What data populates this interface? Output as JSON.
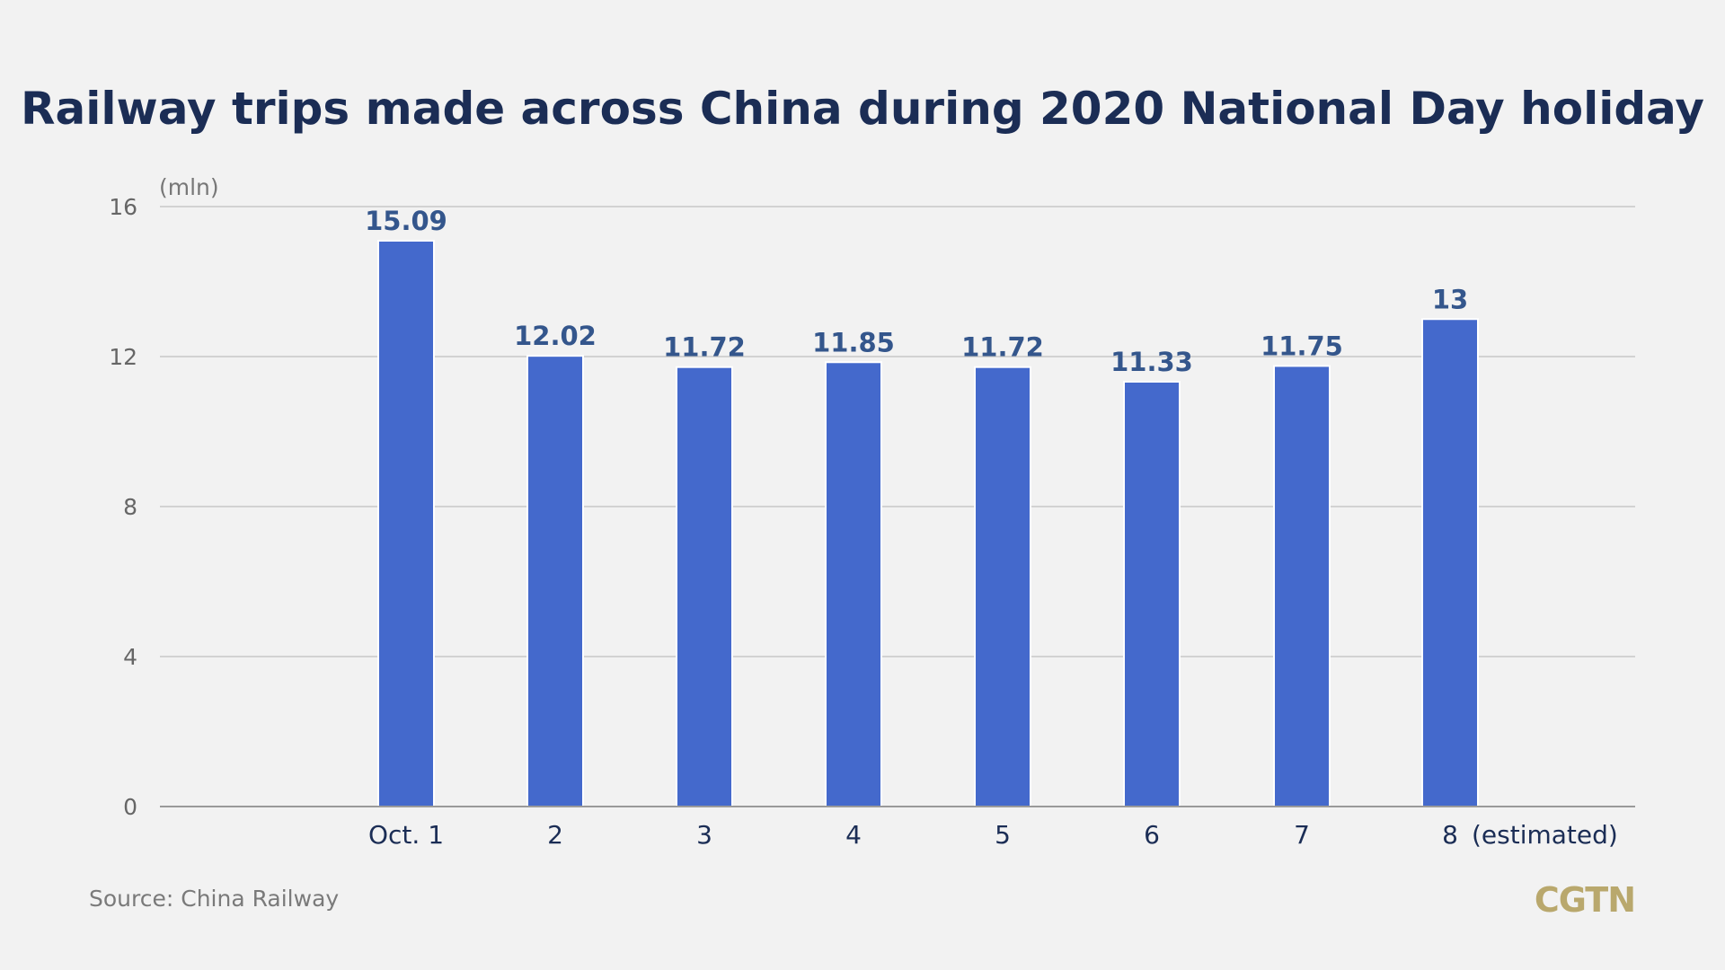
{
  "chart_data": {
    "type": "bar",
    "title": "Railway trips made across China during 2020 National Day holiday",
    "unit_label": "(mln)",
    "categories": [
      "Oct. 1",
      "2",
      "3",
      "4",
      "5",
      "6",
      "7",
      "8"
    ],
    "category_note": "(estimated)",
    "values": [
      15.09,
      12.02,
      11.72,
      11.85,
      11.72,
      11.33,
      11.75,
      13
    ],
    "value_labels": [
      "15.09",
      "12.02",
      "11.72",
      "11.85",
      "11.72",
      "11.33",
      "11.75",
      "13"
    ],
    "ylim": [
      0,
      16
    ],
    "yticks": [
      0,
      4,
      8,
      12,
      16
    ],
    "grid": true,
    "bar_color": "#4469cc",
    "label_color": "#34568c"
  },
  "footer": {
    "source": "Source: China Railway",
    "logo": "CGTN"
  }
}
